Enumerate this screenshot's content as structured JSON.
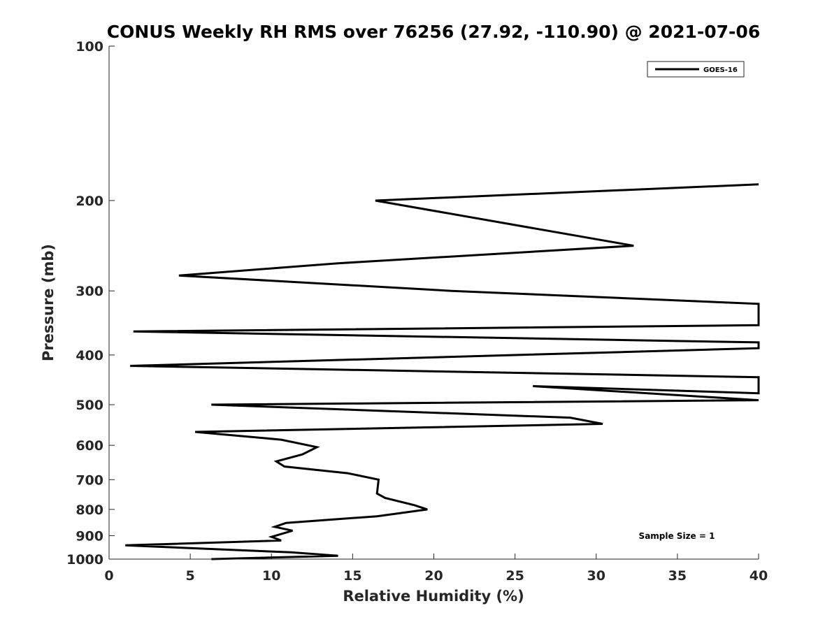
{
  "chart_data": {
    "type": "line",
    "title": "CONUS Weekly RH RMS over 76256 (27.92, -110.90) @ 2021-07-06",
    "xlabel": "Relative Humidity (%)",
    "ylabel": "Pressure (mb)",
    "xlim": [
      0,
      40
    ],
    "ylim": [
      1000,
      100
    ],
    "yscale": "log",
    "grid": false,
    "legend_placement": "top-right",
    "x_ticks": [
      0,
      5,
      10,
      15,
      20,
      25,
      30,
      35,
      40
    ],
    "y_ticks": [
      100,
      200,
      300,
      400,
      500,
      600,
      700,
      800,
      900,
      1000
    ],
    "annotations": [
      "Sample Size = 1"
    ],
    "series": [
      {
        "name": "GOES-16",
        "color": "#000000",
        "points": [
          [
            6.3,
            1000
          ],
          [
            14.1,
            985
          ],
          [
            11.2,
            970
          ],
          [
            1.0,
            940
          ],
          [
            10.6,
            920
          ],
          [
            10.0,
            905
          ],
          [
            11.3,
            880
          ],
          [
            10.2,
            865
          ],
          [
            10.9,
            850
          ],
          [
            16.5,
            825
          ],
          [
            19.6,
            800
          ],
          [
            18.8,
            785
          ],
          [
            17.0,
            760
          ],
          [
            16.5,
            745
          ],
          [
            16.6,
            700
          ],
          [
            14.7,
            680
          ],
          [
            10.8,
            660
          ],
          [
            10.3,
            645
          ],
          [
            11.9,
            625
          ],
          [
            12.8,
            605
          ],
          [
            10.6,
            585
          ],
          [
            5.3,
            565
          ],
          [
            30.4,
            545
          ],
          [
            28.4,
            530
          ],
          [
            6.3,
            500
          ],
          [
            40,
            490
          ],
          [
            26.1,
            460
          ],
          [
            40,
            475
          ],
          [
            40,
            450
          ],
          [
            40,
            442
          ],
          [
            1.3,
            420
          ],
          [
            40,
            388
          ],
          [
            40,
            378
          ],
          [
            1.5,
            360
          ],
          [
            40,
            350
          ],
          [
            40,
            318
          ],
          [
            21.1,
            300
          ],
          [
            4.3,
            280
          ],
          [
            14.1,
            265
          ],
          [
            32.3,
            245
          ],
          [
            16.4,
            200
          ],
          [
            40,
            186
          ]
        ]
      }
    ]
  }
}
